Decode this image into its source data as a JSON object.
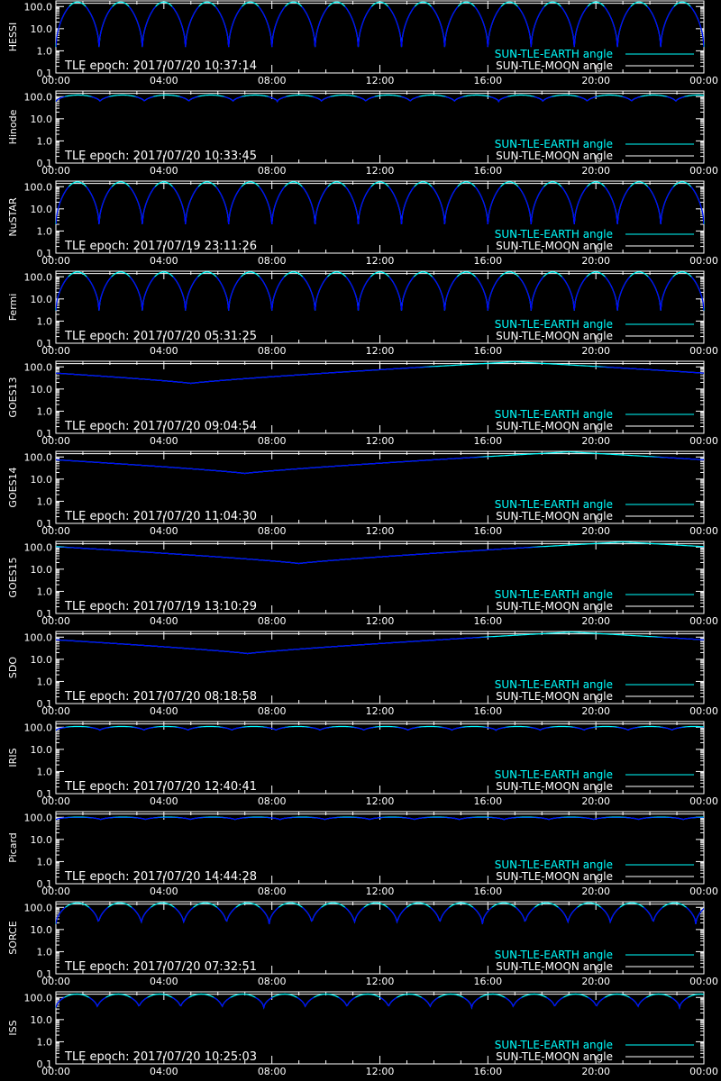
{
  "chart_data": {
    "type": "line",
    "x_tick_labels": [
      "00:00",
      "04:00",
      "08:00",
      "12:00",
      "16:00",
      "20:00",
      "00:00"
    ],
    "x_range_hours": [
      0,
      24
    ],
    "y_tick_labels": [
      "100.0",
      "10.0",
      "1.0",
      "0.1"
    ],
    "y_scale": "log",
    "y_range": [
      0.1,
      180
    ],
    "legend_labels": [
      "SUN-TLE-EARTH angle",
      "SUN-TLE-MOON angle"
    ],
    "legend_placement": "bottom-right",
    "colors": {
      "background": "#000000",
      "axes": "#ffffff",
      "moon_angle": "#ffffff",
      "earth_angle_highlight": "#00ffff",
      "earth_angle": "#0000ff"
    },
    "moon_angle_deg": 141,
    "panels": [
      {
        "name": "HESSI",
        "epoch": "TLE epoch: 2017/07/20 10:37:14",
        "pattern": "orbit",
        "period_hours": 1.6,
        "min_deg": 1.5,
        "max_deg": 160
      },
      {
        "name": "Hinode",
        "epoch": "TLE epoch: 2017/07/20 10:33:45",
        "pattern": "orbit",
        "period_hours": 1.64,
        "min_deg": 60,
        "max_deg": 118
      },
      {
        "name": "NuSTAR",
        "epoch": "TLE epoch: 2017/07/19 23:11:26",
        "pattern": "orbit",
        "period_hours": 1.6,
        "min_deg": 2,
        "max_deg": 165
      },
      {
        "name": "Fermi",
        "epoch": "TLE epoch: 2017/07/20 05:31:25",
        "pattern": "orbit",
        "period_hours": 1.6,
        "min_deg": 3,
        "max_deg": 165
      },
      {
        "name": "GOES13",
        "epoch": "TLE epoch: 2017/07/20 09:04:54",
        "pattern": "geo",
        "min_hour": 5.0,
        "min_deg": 18,
        "max_deg": 170
      },
      {
        "name": "GOES14",
        "epoch": "TLE epoch: 2017/07/20 11:04:30",
        "pattern": "geo",
        "min_hour": 7.0,
        "min_deg": 18,
        "max_deg": 170
      },
      {
        "name": "GOES15",
        "epoch": "TLE epoch: 2017/07/19 13:10:29",
        "pattern": "geo",
        "min_hour": 9.0,
        "min_deg": 18,
        "max_deg": 170
      },
      {
        "name": "SDO",
        "epoch": "TLE epoch: 2017/07/20 08:18:58",
        "pattern": "geo",
        "min_hour": 7.1,
        "min_deg": 18,
        "max_deg": 170
      },
      {
        "name": "IRIS",
        "epoch": "TLE epoch: 2017/07/20 12:40:41",
        "pattern": "orbit",
        "period_hours": 1.63,
        "min_deg": 72,
        "max_deg": 108
      },
      {
        "name": "Picard",
        "epoch": "TLE epoch: 2017/07/20 14:44:28",
        "pattern": "orbit",
        "period_hours": 1.66,
        "min_deg": 78,
        "max_deg": 102
      },
      {
        "name": "SORCE",
        "epoch": "TLE epoch: 2017/07/20 07:32:51",
        "pattern": "orbit",
        "period_hours": 1.58,
        "min_deg": 18,
        "max_deg": 160
      },
      {
        "name": "ISS",
        "epoch": "TLE epoch: 2017/07/20 10:25:03",
        "pattern": "orbit",
        "period_hours": 1.54,
        "min_deg": 35,
        "max_deg": 142
      }
    ]
  }
}
